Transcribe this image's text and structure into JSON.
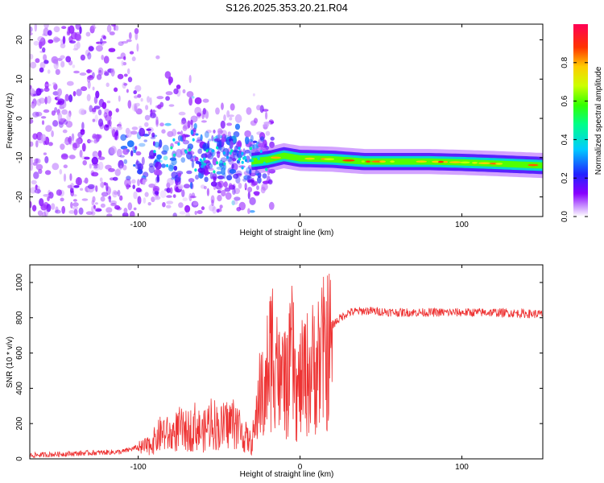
{
  "title": "S126.2025.353.20.21.R04",
  "chart_data": [
    {
      "type": "heatmap",
      "xlabel": "Height of straight line (km)",
      "ylabel": "Frequency (Hz)",
      "xlim": [
        -167,
        150
      ],
      "ylim": [
        -25,
        24
      ],
      "xticks": [
        -100,
        0,
        100
      ],
      "yticks": [
        20,
        10,
        0,
        -10,
        -20
      ],
      "ridge": [
        {
          "x": -30,
          "f": -11.0
        },
        {
          "x": -20,
          "f": -10.5
        },
        {
          "x": -10,
          "f": -9.5
        },
        {
          "x": 0,
          "f": -10.2
        },
        {
          "x": 20,
          "f": -10.4
        },
        {
          "x": 40,
          "f": -11.0
        },
        {
          "x": 60,
          "f": -11.0
        },
        {
          "x": 80,
          "f": -11.0
        },
        {
          "x": 100,
          "f": -11.2
        },
        {
          "x": 120,
          "f": -11.5
        },
        {
          "x": 150,
          "f": -12.0
        }
      ],
      "colorbar": {
        "label": "Normalized spectral amplitude",
        "ticks": [
          0.0,
          0.2,
          0.4,
          0.6,
          0.8
        ],
        "range": [
          0,
          1
        ]
      }
    },
    {
      "type": "line",
      "xlabel": "Height of straight line (km)",
      "ylabel": "SNR (10 * v/v)",
      "xlim": [
        -167,
        150
      ],
      "ylim": [
        0,
        1100
      ],
      "xticks": [
        -100,
        0,
        100
      ],
      "yticks": [
        0,
        200,
        400,
        600,
        800,
        1000
      ],
      "series": [
        {
          "name": "SNR",
          "color": "#ee3333",
          "x": [
            -167,
            -140,
            -110,
            -95,
            -90,
            -85,
            -80,
            -75,
            -70,
            -65,
            -60,
            -55,
            -50,
            -45,
            -40,
            -35,
            -30,
            -27,
            -25,
            -22,
            -20,
            -18,
            -15,
            -12,
            -10,
            -8,
            -5,
            -2,
            0,
            3,
            6,
            10,
            15,
            20,
            25,
            30,
            40,
            60,
            80,
            100,
            120,
            150
          ],
          "values": [
            20,
            30,
            40,
            80,
            120,
            180,
            150,
            200,
            180,
            220,
            170,
            260,
            200,
            230,
            250,
            160,
            100,
            250,
            500,
            350,
            600,
            700,
            800,
            420,
            600,
            450,
            700,
            400,
            500,
            560,
            580,
            640,
            700,
            760,
            800,
            830,
            840,
            830,
            830,
            830,
            830,
            820
          ]
        }
      ]
    }
  ]
}
